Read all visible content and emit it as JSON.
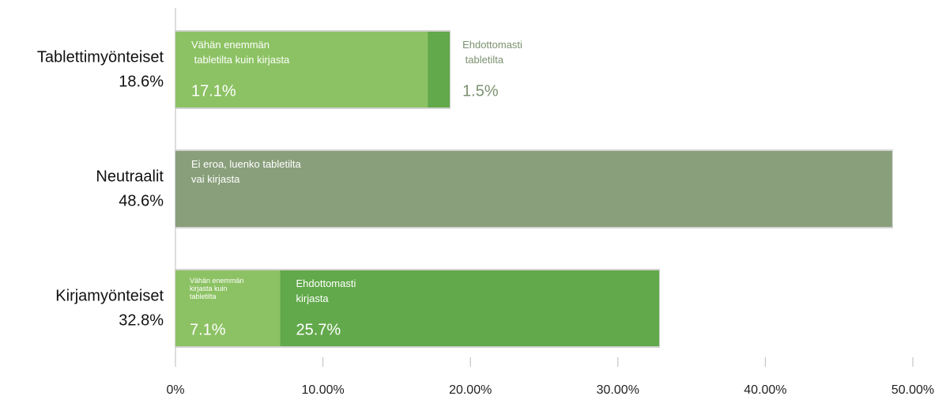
{
  "chart_data": {
    "type": "stacked-barh",
    "categories": [
      "Tablettimyönteiset",
      "Neutraalit",
      "Kirjamyönteiset"
    ],
    "totals": {
      "values": [
        18.6,
        48.6,
        32.8
      ],
      "value_labels": [
        "18.6%",
        "48.6%",
        "32.8%"
      ]
    },
    "series": [
      {
        "name": "Vähän enemmän\n tabletilta kuin kirjasta",
        "color": "#8cc263",
        "values": [
          17.1,
          null,
          null
        ],
        "value_labels": [
          "17.1%",
          null,
          null
        ]
      },
      {
        "name": "Ehdottomasti\n tabletilta",
        "color": "#62a94b",
        "values": [
          1.5,
          null,
          null
        ],
        "value_labels": [
          "1.5%",
          null,
          null
        ]
      },
      {
        "name": "Ei eroa, luenko tabletilta\nvai kirjasta",
        "color": "#899f7b",
        "values": [
          null,
          48.6,
          null
        ],
        "value_labels": [
          null,
          null,
          null
        ]
      },
      {
        "name": "Vähän enemmän\nkirjasta kuin\ntabletilta",
        "color": "#8cc263",
        "values": [
          null,
          null,
          7.1
        ],
        "value_labels": [
          null,
          null,
          "7.1%"
        ]
      },
      {
        "name": "Ehdottomasti\nkirjasta",
        "color": "#62a94b",
        "values": [
          null,
          null,
          25.7
        ],
        "value_labels": [
          null,
          null,
          "25.7%"
        ]
      }
    ],
    "xlim": [
      0,
      50
    ],
    "xticks": [
      {
        "value": 0,
        "label": "0%"
      },
      {
        "value": 10,
        "label": "10.00%"
      },
      {
        "value": 20,
        "label": "20.00%"
      },
      {
        "value": 30,
        "label": "30.00%"
      },
      {
        "value": 40,
        "label": "40.00%"
      },
      {
        "value": 50,
        "label": "50.00%"
      }
    ]
  }
}
